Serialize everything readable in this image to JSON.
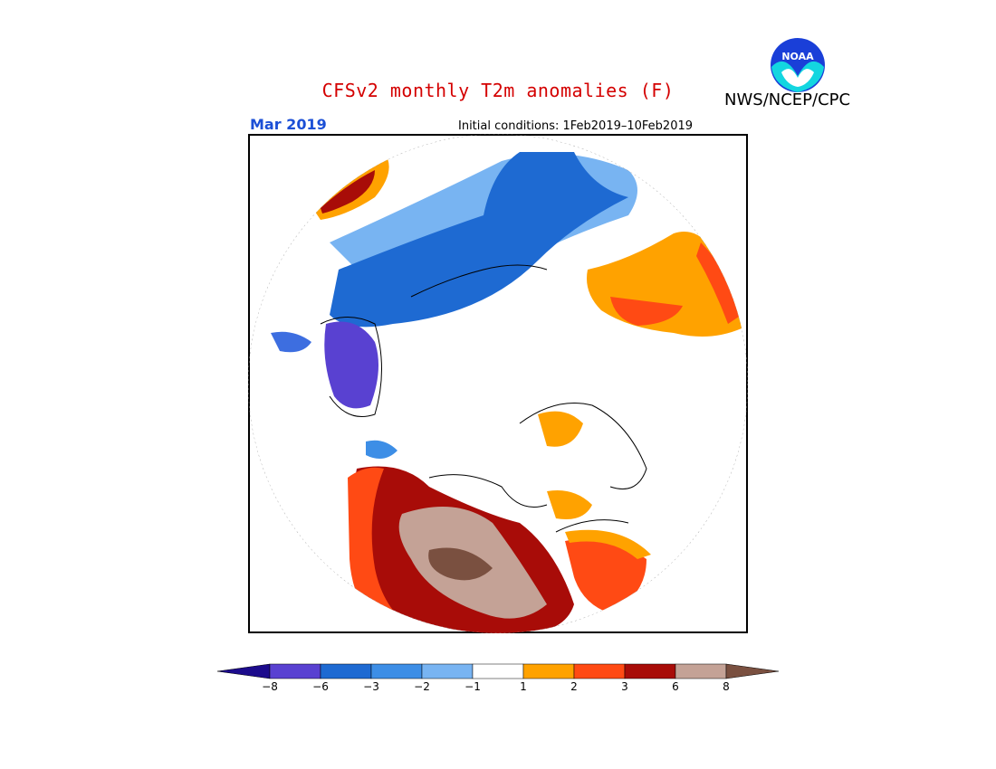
{
  "title": "CFSv2 monthly T2m anomalies (F)",
  "agency": "NWS/NCEP/CPC",
  "period": "Mar 2019",
  "initial_conditions": "Initial conditions: 1Feb2019–10Feb2019",
  "logo": {
    "text": "NOAA",
    "icon": "noaa-logo-icon"
  },
  "legend": {
    "colors": [
      "#1c0b8c",
      "#5941d1",
      "#1e6ad2",
      "#3d8ee6",
      "#78b4f2",
      "#ffffff",
      "#ffa200",
      "#ff4a14",
      "#a80c08",
      "#c4a296",
      "#7a5040"
    ],
    "labels": [
      "−8",
      "−6",
      "−3",
      "−2",
      "−1",
      "1",
      "2",
      "3",
      "6",
      "8"
    ]
  },
  "map_regions": [
    {
      "name": "region-cold-greenland",
      "anomaly": "-6 to -8"
    },
    {
      "name": "region-cold-canada",
      "anomaly": "-3 to -6"
    },
    {
      "name": "region-warm-europe",
      "anomaly": "1 to 3"
    },
    {
      "name": "region-warm-siberia",
      "anomaly": "3 to 8"
    },
    {
      "name": "region-warm-alaska",
      "anomaly": "1 to 3"
    }
  ]
}
